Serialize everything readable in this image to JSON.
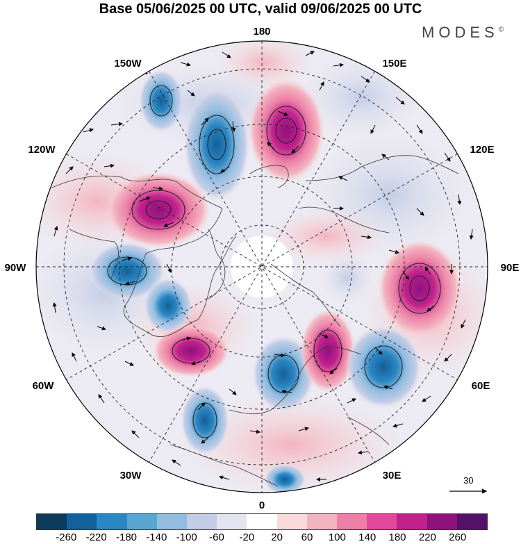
{
  "title": "Base 05/06/2025 00 UTC, valid 09/06/2025 00 UTC",
  "brand": "MODES",
  "brand_mark": "©",
  "longitude_labels": {
    "top": "180",
    "bottom": "0",
    "left": "90W",
    "right": "90E",
    "upper_left_1": "150W",
    "upper_left_2": "120W",
    "lower_left_1": "60W",
    "lower_left_2": "30W",
    "upper_right_1": "150E",
    "upper_right_2": "120E",
    "lower_right_1": "60E",
    "lower_right_2": "30E"
  },
  "vector_reference_label": "30",
  "colorbar": {
    "colors": [
      "#0d3b5e",
      "#14609a",
      "#2b86c2",
      "#5aa6d3",
      "#93bde0",
      "#c3cde6",
      "#e4e4f0",
      "#ffffff",
      "#f9dada",
      "#f3b4c0",
      "#ec7fa7",
      "#e2489b",
      "#c0218c",
      "#8e127e",
      "#55106b"
    ],
    "ticks": [
      "-260",
      "-220",
      "-180",
      "-140",
      "-100",
      "-60",
      "-20",
      "20",
      "60",
      "100",
      "140",
      "180",
      "220",
      "260"
    ]
  }
}
